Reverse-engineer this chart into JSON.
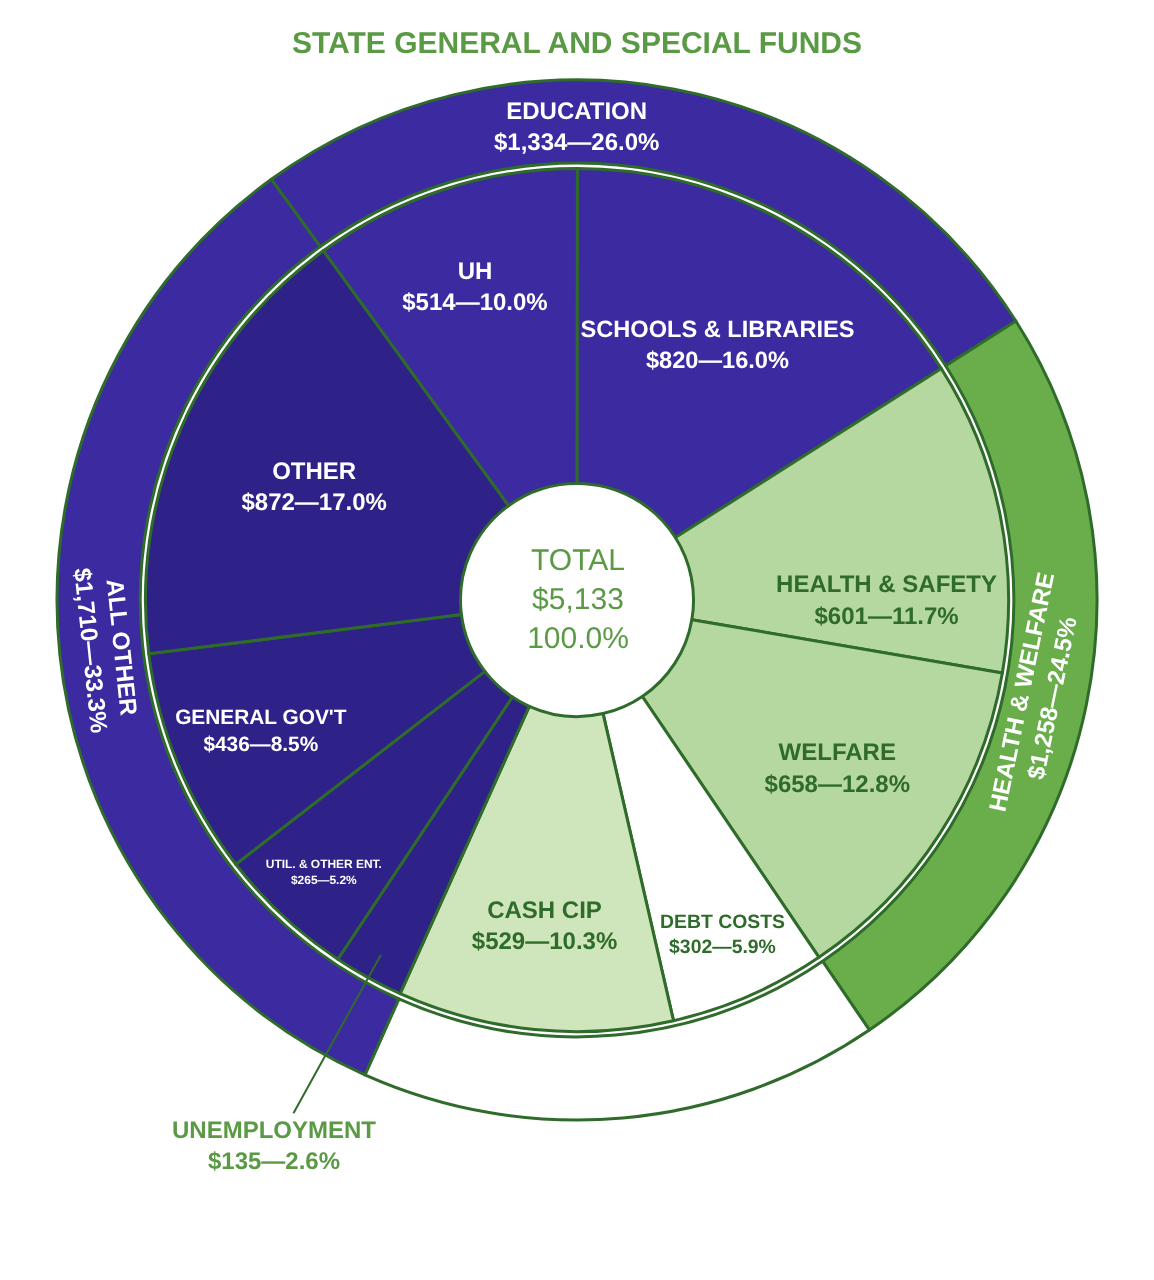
{
  "chart_data": [
    {
      "type": "donut",
      "title": "STATE GENERAL AND SPECIAL FUNDS",
      "categories": [
        "EDUCATION",
        "HEALTH & WELFARE",
        null,
        "ALL OTHER"
      ],
      "values": [
        1334,
        1258,
        831,
        1710
      ],
      "value_labels": [
        "$1,334—26.0%",
        "$1,258—24.5%",
        null,
        "$1,710—33.3%"
      ],
      "colors": [
        "#3b2aa0",
        "#6aae4c",
        "#ffffff",
        "#3b2aa0"
      ]
    },
    {
      "type": "donut",
      "categories": [
        "UH",
        "SCHOOLS & LIBRARIES",
        "HEALTH & SAFETY",
        "WELFARE",
        "DEBT COSTS",
        "CASH CIP",
        "UNEMPLOYMENT",
        "UTIL. & OTHER ENT.",
        "GENERAL GOV'T",
        "OTHER"
      ],
      "values": [
        514,
        820,
        601,
        658,
        302,
        529,
        135,
        265,
        436,
        872
      ],
      "value_labels": [
        "$514—10.0%",
        "$820—16.0%",
        "$601—11.7%",
        "$658—12.8%",
        "$302—5.9%",
        "$529—10.3%",
        "$135—2.6%",
        "$265—5.2%",
        "$436—8.5%",
        "$872—17.0%"
      ],
      "colors": [
        "#3b2aa0",
        "#3b2aa0",
        "#b5d8a0",
        "#b5d8a0",
        "#ffffff",
        "#cfe6bd",
        "#2e2188",
        "#2e2188",
        "#2e2188",
        "#2e2188"
      ],
      "annotations": [
        "TOTAL $5,133 100.0%"
      ]
    }
  ]
}
